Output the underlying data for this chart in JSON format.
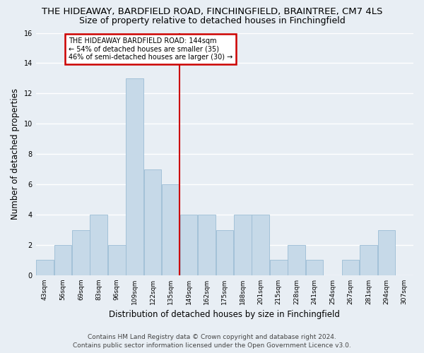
{
  "title": "THE HIDEAWAY, BARDFIELD ROAD, FINCHINGFIELD, BRAINTREE, CM7 4LS",
  "subtitle": "Size of property relative to detached houses in Finchingfield",
  "xlabel": "Distribution of detached houses by size in Finchingfield",
  "ylabel": "Number of detached properties",
  "bin_labels": [
    "43sqm",
    "56sqm",
    "69sqm",
    "83sqm",
    "96sqm",
    "109sqm",
    "122sqm",
    "135sqm",
    "149sqm",
    "162sqm",
    "175sqm",
    "188sqm",
    "201sqm",
    "215sqm",
    "228sqm",
    "241sqm",
    "254sqm",
    "267sqm",
    "281sqm",
    "294sqm",
    "307sqm"
  ],
  "bar_heights": [
    1,
    2,
    3,
    4,
    2,
    13,
    7,
    6,
    4,
    4,
    3,
    4,
    4,
    1,
    2,
    1,
    0,
    1,
    2,
    3,
    0
  ],
  "bar_color": "#c6d9e8",
  "bar_edge_color": "#9bbcd4",
  "vline_x_index": 7.5,
  "vline_color": "#cc0000",
  "ylim": [
    0,
    16
  ],
  "yticks": [
    0,
    2,
    4,
    6,
    8,
    10,
    12,
    14,
    16
  ],
  "annotation_title": "THE HIDEAWAY BARDFIELD ROAD: 144sqm",
  "annotation_line1": "← 54% of detached houses are smaller (35)",
  "annotation_line2": "46% of semi-detached houses are larger (30) →",
  "annotation_box_color": "#ffffff",
  "annotation_box_edge_color": "#cc0000",
  "footer_line1": "Contains HM Land Registry data © Crown copyright and database right 2024.",
  "footer_line2": "Contains public sector information licensed under the Open Government Licence v3.0.",
  "background_color": "#e8eef4",
  "plot_background_color": "#e8eef4",
  "grid_color": "#ffffff",
  "title_fontsize": 9.5,
  "subtitle_fontsize": 9,
  "axis_label_fontsize": 8.5,
  "tick_fontsize": 6.5,
  "footer_fontsize": 6.5
}
